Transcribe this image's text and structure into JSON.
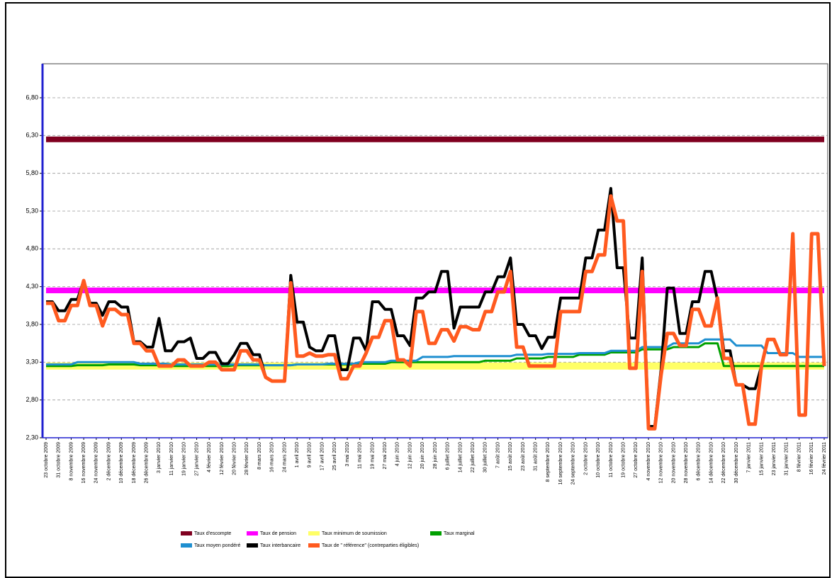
{
  "chart_data": {
    "type": "line",
    "categories": [
      "23 octobre 2009",
      null,
      "31 octobre 2009",
      null,
      "8 novembre 2009",
      null,
      "16 novembre 2009",
      null,
      "24 novembre 2009",
      null,
      "2 décembre 2009",
      null,
      "10 décembre 2009",
      null,
      "18 décembre 2009",
      null,
      "26 décembre 2009",
      null,
      "3 janvier 2010",
      null,
      "11 janvier 2010",
      null,
      "19 janvier 2010",
      null,
      "27 janvier 2010",
      null,
      "4 février 2010",
      null,
      "12 février 2010",
      null,
      "20 février 2010",
      null,
      "28 février 2010",
      null,
      "8 mars 2010",
      null,
      "16 mars 2010",
      null,
      "24 mars 2010",
      null,
      "1 avril 2010",
      null,
      "9 avril 2010",
      null,
      "17 avril 2010",
      null,
      "25 avril 2010",
      null,
      "3 mai 2010",
      null,
      "11 mai 2010",
      null,
      "19 mai 2010",
      null,
      "27 mai 2010",
      null,
      "4 juin 2010",
      null,
      "12 juin 2010",
      null,
      "20 juin 2010",
      null,
      "28 juin 2010",
      null,
      "6 juillet 2010",
      null,
      "14 juillet 2010",
      null,
      "22 juillet 2010",
      null,
      "30 juillet 2010",
      null,
      "7 août 2010",
      null,
      "15 août 2010",
      null,
      "23 août 2010",
      null,
      "31 août 2010",
      null,
      "8 septembre 2010",
      null,
      "16 septembre 2010",
      null,
      "24 septembre 2010",
      null,
      "2 octobre 2010",
      null,
      "10 octobre 2010",
      null,
      "11 octobre 2010",
      null,
      "19 octobre 2010",
      null,
      "27 octobre 2010",
      null,
      "4 novembre 2010",
      null,
      "12 novembre 2010",
      null,
      "20 novembre 2010",
      null,
      "28 novembre 2010",
      null,
      "6 décembre 2010",
      null,
      "14 décembre 2010",
      null,
      "22 décembre 2010",
      null,
      "30 décembre 2010",
      null,
      "7 janvier 2011",
      null,
      "15 janvier 2011",
      null,
      "23 janvier 2011",
      null,
      "31 janvier 2011",
      null,
      "8 février 2011",
      null,
      "16 février 2011",
      null,
      "24 février 2011"
    ],
    "series": [
      {
        "name": "Taux d'escompte",
        "color": "#800020",
        "values": [
          6.25,
          6.25,
          6.25,
          6.25,
          6.25,
          6.25,
          6.25,
          6.25,
          6.25,
          6.25,
          6.25,
          6.25,
          6.25,
          6.25,
          6.25,
          6.25,
          6.25,
          6.25,
          6.25,
          6.25,
          6.25,
          6.25,
          6.25,
          6.25,
          6.25,
          6.25,
          6.25,
          6.25,
          6.25,
          6.25,
          6.25,
          6.25,
          6.25,
          6.25,
          6.25,
          6.25,
          6.25,
          6.25,
          6.25,
          6.25,
          6.25,
          6.25,
          6.25,
          6.25,
          6.25,
          6.25,
          6.25,
          6.25,
          6.25,
          6.25,
          6.25,
          6.25,
          6.25,
          6.25,
          6.25,
          6.25,
          6.25,
          6.25,
          6.25,
          6.25,
          6.25,
          6.25,
          6.25,
          6.25,
          6.25,
          6.25,
          6.25,
          6.25,
          6.25,
          6.25,
          6.25,
          6.25,
          6.25,
          6.25,
          6.25,
          6.25,
          6.25,
          6.25,
          6.25,
          6.25,
          6.25,
          6.25,
          6.25,
          6.25,
          6.25,
          6.25,
          6.25,
          6.25,
          6.25,
          6.25,
          6.25,
          6.25,
          6.25,
          6.25,
          6.25,
          6.25,
          6.25,
          6.25,
          6.25,
          6.25,
          6.25,
          6.25,
          6.25,
          6.25,
          6.25,
          6.25,
          6.25,
          6.25,
          6.25,
          6.25,
          6.25,
          6.25,
          6.25,
          6.25,
          6.25,
          6.25,
          6.25,
          6.25,
          6.25,
          6.25,
          6.25,
          6.25,
          6.25,
          6.25,
          6.25
        ]
      },
      {
        "name": "Taux de pension",
        "color": "#ff00ff",
        "values": [
          4.25,
          4.25,
          4.25,
          4.25,
          4.25,
          4.25,
          4.25,
          4.25,
          4.25,
          4.25,
          4.25,
          4.25,
          4.25,
          4.25,
          4.25,
          4.25,
          4.25,
          4.25,
          4.25,
          4.25,
          4.25,
          4.25,
          4.25,
          4.25,
          4.25,
          4.25,
          4.25,
          4.25,
          4.25,
          4.25,
          4.25,
          4.25,
          4.25,
          4.25,
          4.25,
          4.25,
          4.25,
          4.25,
          4.25,
          4.25,
          4.25,
          4.25,
          4.25,
          4.25,
          4.25,
          4.25,
          4.25,
          4.25,
          4.25,
          4.25,
          4.25,
          4.25,
          4.25,
          4.25,
          4.25,
          4.25,
          4.25,
          4.25,
          4.25,
          4.25,
          4.25,
          4.25,
          4.25,
          4.25,
          4.25,
          4.25,
          4.25,
          4.25,
          4.25,
          4.25,
          4.25,
          4.25,
          4.25,
          4.25,
          4.25,
          4.25,
          4.25,
          4.25,
          4.25,
          4.25,
          4.25,
          4.25,
          4.25,
          4.25,
          4.25,
          4.25,
          4.25,
          4.25,
          4.25,
          4.25,
          4.25,
          4.25,
          4.25,
          4.25,
          4.25,
          4.25,
          4.25,
          4.25,
          4.25,
          4.25,
          4.25,
          4.25,
          4.25,
          4.25,
          4.25,
          4.25,
          4.25,
          4.25,
          4.25,
          4.25,
          4.25,
          4.25,
          4.25,
          4.25,
          4.25,
          4.25,
          4.25,
          4.25,
          4.25,
          4.25,
          4.25,
          4.25,
          4.25,
          4.25,
          4.25
        ]
      },
      {
        "name": "Taux minimum de soumission",
        "color": "#ffff66",
        "values": [
          3.25,
          3.25,
          3.25,
          3.25,
          3.25,
          3.25,
          3.25,
          3.25,
          3.25,
          3.25,
          3.25,
          3.25,
          3.25,
          3.25,
          3.25,
          3.25,
          3.25,
          3.25,
          3.25,
          3.25,
          3.25,
          3.25,
          3.25,
          3.25,
          3.25,
          3.25,
          3.25,
          3.25,
          3.25,
          3.25,
          3.25,
          3.25,
          3.25,
          3.25,
          3.25,
          3.25,
          3.25,
          3.25,
          3.25,
          3.25,
          3.25,
          3.25,
          3.25,
          3.25,
          3.25,
          3.25,
          3.25,
          3.25,
          3.25,
          3.25,
          3.25,
          3.25,
          3.25,
          3.25,
          3.25,
          3.25,
          3.25,
          3.25,
          3.25,
          3.25,
          3.25,
          3.25,
          3.25,
          3.25,
          3.25,
          3.25,
          3.25,
          3.25,
          3.25,
          3.25,
          3.25,
          3.25,
          3.25,
          3.25,
          3.25,
          3.25,
          3.25,
          3.25,
          3.25,
          3.25,
          3.25,
          3.25,
          3.25,
          3.25,
          3.25,
          3.25,
          3.25,
          3.25,
          3.25,
          3.25,
          3.25,
          3.25,
          3.25,
          3.25,
          3.25,
          3.25,
          3.25,
          3.25,
          3.25,
          3.25,
          3.25,
          3.25,
          3.25,
          3.25,
          3.25,
          3.25,
          3.25,
          3.25,
          3.25,
          3.25,
          3.25,
          3.25,
          3.25,
          3.25,
          3.25,
          3.25,
          3.25,
          3.25,
          3.25,
          3.25,
          3.25,
          3.25,
          3.25,
          3.25,
          3.25
        ]
      },
      {
        "name": "Taux marginal",
        "color": "#00a000",
        "values": [
          3.25,
          3.25,
          3.25,
          3.25,
          3.25,
          3.26,
          3.26,
          3.26,
          3.26,
          3.26,
          3.27,
          3.27,
          3.27,
          3.27,
          3.27,
          3.26,
          3.26,
          3.26,
          3.26,
          3.26,
          3.25,
          3.25,
          3.25,
          3.25,
          3.25,
          3.25,
          3.25,
          3.25,
          3.25,
          3.25,
          3.26,
          3.26,
          3.26,
          3.26,
          3.26,
          3.26,
          3.26,
          3.26,
          3.26,
          3.26,
          3.27,
          3.27,
          3.27,
          3.27,
          3.27,
          3.27,
          3.27,
          3.27,
          3.27,
          3.27,
          3.28,
          3.28,
          3.28,
          3.28,
          3.28,
          3.3,
          3.3,
          3.3,
          3.3,
          3.3,
          3.3,
          3.3,
          3.3,
          3.3,
          3.3,
          3.3,
          3.3,
          3.3,
          3.3,
          3.3,
          3.32,
          3.32,
          3.32,
          3.32,
          3.32,
          3.35,
          3.35,
          3.35,
          3.35,
          3.35,
          3.37,
          3.37,
          3.37,
          3.37,
          3.37,
          3.4,
          3.4,
          3.4,
          3.4,
          3.4,
          3.43,
          3.43,
          3.43,
          3.43,
          3.43,
          3.47,
          3.47,
          3.47,
          3.47,
          3.47,
          3.5,
          3.5,
          3.5,
          3.5,
          3.5,
          3.55,
          3.55,
          3.55,
          3.25,
          3.25,
          3.25,
          3.25,
          3.25,
          3.25,
          3.25,
          3.25,
          3.25,
          3.25,
          3.25,
          3.25,
          3.25,
          3.25,
          3.25,
          3.25,
          3.25
        ]
      },
      {
        "name": "Taux moyen pondéré",
        "color": "#1e8fd0",
        "values": [
          3.27,
          3.27,
          3.27,
          3.27,
          3.27,
          3.3,
          3.3,
          3.3,
          3.3,
          3.3,
          3.3,
          3.3,
          3.3,
          3.3,
          3.3,
          3.28,
          3.28,
          3.28,
          3.28,
          3.28,
          3.27,
          3.27,
          3.27,
          3.27,
          3.27,
          3.27,
          3.27,
          3.27,
          3.27,
          3.27,
          3.27,
          3.27,
          3.27,
          3.27,
          3.27,
          3.26,
          3.26,
          3.26,
          3.26,
          3.26,
          3.27,
          3.27,
          3.27,
          3.27,
          3.27,
          3.28,
          3.28,
          3.28,
          3.28,
          3.28,
          3.3,
          3.3,
          3.3,
          3.3,
          3.3,
          3.32,
          3.32,
          3.32,
          3.32,
          3.32,
          3.37,
          3.37,
          3.37,
          3.37,
          3.37,
          3.38,
          3.38,
          3.38,
          3.38,
          3.38,
          3.38,
          3.38,
          3.38,
          3.38,
          3.38,
          3.4,
          3.4,
          3.4,
          3.4,
          3.4,
          3.41,
          3.41,
          3.41,
          3.41,
          3.41,
          3.42,
          3.42,
          3.42,
          3.42,
          3.42,
          3.45,
          3.45,
          3.45,
          3.45,
          3.45,
          3.5,
          3.5,
          3.5,
          3.5,
          3.5,
          3.55,
          3.55,
          3.55,
          3.55,
          3.55,
          3.6,
          3.6,
          3.6,
          3.6,
          3.6,
          3.52,
          3.52,
          3.52,
          3.52,
          3.52,
          3.42,
          3.42,
          3.42,
          3.42,
          3.42,
          3.37,
          3.37,
          3.37,
          3.37,
          3.37
        ]
      },
      {
        "name": "Taux interbancaire",
        "color": "#000000",
        "values": [
          4.1,
          4.1,
          3.98,
          3.98,
          4.13,
          4.13,
          4.38,
          4.08,
          4.08,
          3.92,
          4.1,
          4.1,
          4.03,
          4.03,
          3.57,
          3.57,
          3.5,
          3.5,
          3.88,
          3.45,
          3.45,
          3.57,
          3.57,
          3.62,
          3.35,
          3.35,
          3.43,
          3.43,
          3.28,
          3.28,
          3.4,
          3.55,
          3.55,
          3.4,
          3.4,
          3.1,
          3.05,
          3.05,
          3.05,
          4.45,
          3.83,
          3.83,
          3.5,
          3.45,
          3.45,
          3.65,
          3.65,
          3.2,
          3.2,
          3.62,
          3.62,
          3.45,
          4.1,
          4.1,
          4.0,
          4.0,
          3.65,
          3.65,
          3.52,
          4.15,
          4.15,
          4.23,
          4.23,
          4.5,
          4.5,
          3.75,
          4.03,
          4.03,
          4.03,
          4.03,
          4.23,
          4.23,
          4.43,
          4.43,
          4.68,
          3.8,
          3.8,
          3.65,
          3.65,
          3.48,
          3.63,
          3.63,
          4.15,
          4.15,
          4.15,
          4.15,
          4.68,
          4.68,
          5.05,
          5.05,
          5.6,
          4.55,
          4.55,
          3.62,
          3.62,
          4.68,
          2.45,
          2.45,
          3.2,
          4.28,
          4.28,
          3.68,
          3.68,
          4.1,
          4.1,
          4.5,
          4.5,
          4.12,
          3.45,
          3.45,
          3.0,
          3.0,
          2.95,
          2.95,
          3.25,
          3.6,
          3.6,
          3.4,
          3.4,
          5.0,
          2.6,
          2.6,
          5.0,
          5.0,
          3.25
        ]
      },
      {
        "name": "Taux de  \" référence\" (contreparties éligibles)",
        "color": "#ff5a1f",
        "values": [
          4.08,
          4.08,
          3.85,
          3.85,
          4.05,
          4.05,
          4.38,
          4.05,
          4.05,
          3.78,
          4.0,
          4.0,
          3.93,
          3.93,
          3.55,
          3.55,
          3.45,
          3.45,
          3.25,
          3.25,
          3.25,
          3.33,
          3.33,
          3.25,
          3.25,
          3.25,
          3.3,
          3.3,
          3.2,
          3.2,
          3.2,
          3.45,
          3.45,
          3.33,
          3.33,
          3.1,
          3.05,
          3.05,
          3.05,
          4.35,
          3.38,
          3.38,
          3.42,
          3.38,
          3.38,
          3.4,
          3.4,
          3.08,
          3.08,
          3.25,
          3.25,
          3.42,
          3.63,
          3.63,
          3.85,
          3.85,
          3.33,
          3.33,
          3.25,
          3.97,
          3.97,
          3.55,
          3.55,
          3.73,
          3.73,
          3.58,
          3.77,
          3.77,
          3.73,
          3.73,
          3.97,
          3.97,
          4.23,
          4.23,
          4.5,
          3.5,
          3.5,
          3.25,
          3.25,
          3.25,
          3.25,
          3.25,
          3.97,
          3.97,
          3.97,
          3.97,
          4.5,
          4.5,
          4.72,
          4.72,
          5.5,
          5.17,
          5.17,
          3.22,
          3.22,
          4.5,
          2.42,
          2.42,
          3.13,
          3.68,
          3.68,
          3.52,
          3.52,
          4.0,
          4.0,
          3.78,
          3.78,
          4.15,
          3.35,
          3.35,
          3.0,
          3.0,
          2.48,
          2.48,
          3.25,
          3.6,
          3.6,
          3.4,
          3.4,
          5.0,
          2.6,
          2.6,
          5.0,
          5.0,
          3.25
        ]
      }
    ],
    "ylim": [
      2.3,
      7.25
    ],
    "yticks": [
      {
        "value": 2.3,
        "label": "2,30"
      },
      {
        "value": 2.8,
        "label": "2,80"
      },
      {
        "value": 3.3,
        "label": "3,30"
      },
      {
        "value": 3.8,
        "label": "3,80"
      },
      {
        "value": 4.3,
        "label": "4,30"
      },
      {
        "value": 4.8,
        "label": "4,80"
      },
      {
        "value": 5.3,
        "label": "5,30"
      },
      {
        "value": 5.8,
        "label": "5,80"
      },
      {
        "value": 6.3,
        "label": "6,30"
      },
      {
        "value": 6.8,
        "label": "6,80"
      }
    ],
    "grid": true
  }
}
